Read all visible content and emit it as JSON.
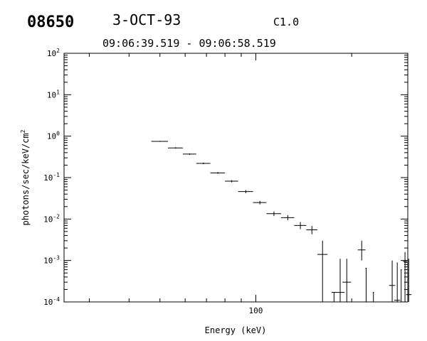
{
  "header": {
    "event_id": "08650",
    "date": "3-OCT-93",
    "flare_class": "C1.0",
    "time_range": "09:06:39.519 - 09:06:58.519"
  },
  "chart_data": {
    "type": "scatter",
    "style": "error bars (horizontal bin width, vertical uncertainty)",
    "xlabel": "Energy (keV)",
    "ylabel": "photons/sec/keV/cm^2",
    "x_scale": "log",
    "y_scale": "log",
    "xlim": [
      25,
      300
    ],
    "ylim": [
      0.0001,
      100
    ],
    "x_tick_labels": [
      "100"
    ],
    "y_tick_labels": [
      {
        "base": "10",
        "exp": "-4"
      },
      {
        "base": "10",
        "exp": "-3"
      },
      {
        "base": "10",
        "exp": "-2"
      },
      {
        "base": "10",
        "exp": "-1"
      },
      {
        "base": "10",
        "exp": "0"
      },
      {
        "base": "10",
        "exp": "1"
      },
      {
        "base": "10",
        "exp": "2"
      }
    ],
    "grid": false,
    "points": [
      {
        "x": 50,
        "xlo": 47,
        "xhi": 53,
        "y": 0.75,
        "ylo": 0.73,
        "yhi": 0.77
      },
      {
        "x": 56,
        "xlo": 53,
        "xhi": 59,
        "y": 0.52,
        "ylo": 0.5,
        "yhi": 0.54
      },
      {
        "x": 62,
        "xlo": 59,
        "xhi": 65,
        "y": 0.37,
        "ylo": 0.355,
        "yhi": 0.385
      },
      {
        "x": 68.5,
        "xlo": 65,
        "xhi": 72,
        "y": 0.22,
        "ylo": 0.21,
        "yhi": 0.23
      },
      {
        "x": 76,
        "xlo": 72,
        "xhi": 80,
        "y": 0.13,
        "ylo": 0.124,
        "yhi": 0.136
      },
      {
        "x": 84,
        "xlo": 80,
        "xhi": 88,
        "y": 0.082,
        "ylo": 0.077,
        "yhi": 0.087
      },
      {
        "x": 93,
        "xlo": 88,
        "xhi": 98,
        "y": 0.046,
        "ylo": 0.042,
        "yhi": 0.05
      },
      {
        "x": 103,
        "xlo": 98,
        "xhi": 108,
        "y": 0.025,
        "ylo": 0.0225,
        "yhi": 0.0275
      },
      {
        "x": 114,
        "xlo": 108,
        "xhi": 120,
        "y": 0.0135,
        "ylo": 0.0118,
        "yhi": 0.0152
      },
      {
        "x": 126,
        "xlo": 120,
        "xhi": 132,
        "y": 0.0108,
        "ylo": 0.0093,
        "yhi": 0.0124
      },
      {
        "x": 138,
        "xlo": 132,
        "xhi": 144,
        "y": 0.007,
        "ylo": 0.0057,
        "yhi": 0.0085
      },
      {
        "x": 150,
        "xlo": 144,
        "xhi": 156,
        "y": 0.0055,
        "ylo": 0.0043,
        "yhi": 0.0068
      },
      {
        "x": 162,
        "xlo": 156,
        "xhi": 168,
        "y": 0.0014,
        "ylo": 0.0001,
        "yhi": 0.003
      },
      {
        "x": 176,
        "xlo": 173,
        "xhi": 179,
        "y": 0.00017,
        "ylo": 0.0001,
        "yhi": 0.00017
      },
      {
        "x": 184,
        "xlo": 178,
        "xhi": 190,
        "y": 0.00017,
        "ylo": 0.0001,
        "yhi": 0.0011
      },
      {
        "x": 193,
        "xlo": 187,
        "xhi": 199,
        "y": 0.0003,
        "ylo": 0.0001,
        "yhi": 0.0011
      },
      {
        "x": 215,
        "xlo": 209,
        "xhi": 221,
        "y": 0.0018,
        "ylo": 0.001,
        "yhi": 0.003
      },
      {
        "x": 222,
        "xlo": 221,
        "xhi": 223,
        "y": 0.00065,
        "ylo": 0.0001,
        "yhi": 0.00065
      },
      {
        "x": 234,
        "xlo": 233,
        "xhi": 235,
        "y": 0.00017,
        "ylo": 0.0001,
        "yhi": 0.00017
      },
      {
        "x": 268,
        "xlo": 262,
        "xhi": 274,
        "y": 0.00025,
        "ylo": 0.0001,
        "yhi": 0.001
      },
      {
        "x": 278,
        "xlo": 272,
        "xhi": 284,
        "y": 0.00011,
        "ylo": 0.0001,
        "yhi": 0.0009
      },
      {
        "x": 286,
        "xlo": 285,
        "xhi": 287,
        "y": 0.0006,
        "ylo": 0.0001,
        "yhi": 0.0006
      },
      {
        "x": 294,
        "xlo": 290,
        "xhi": 298,
        "y": 0.00095,
        "ylo": 0.0001,
        "yhi": 0.0016
      },
      {
        "x": 302,
        "xlo": 296,
        "xhi": 308,
        "y": 0.00015,
        "ylo": 0.0001,
        "yhi": 0.0011
      }
    ]
  }
}
